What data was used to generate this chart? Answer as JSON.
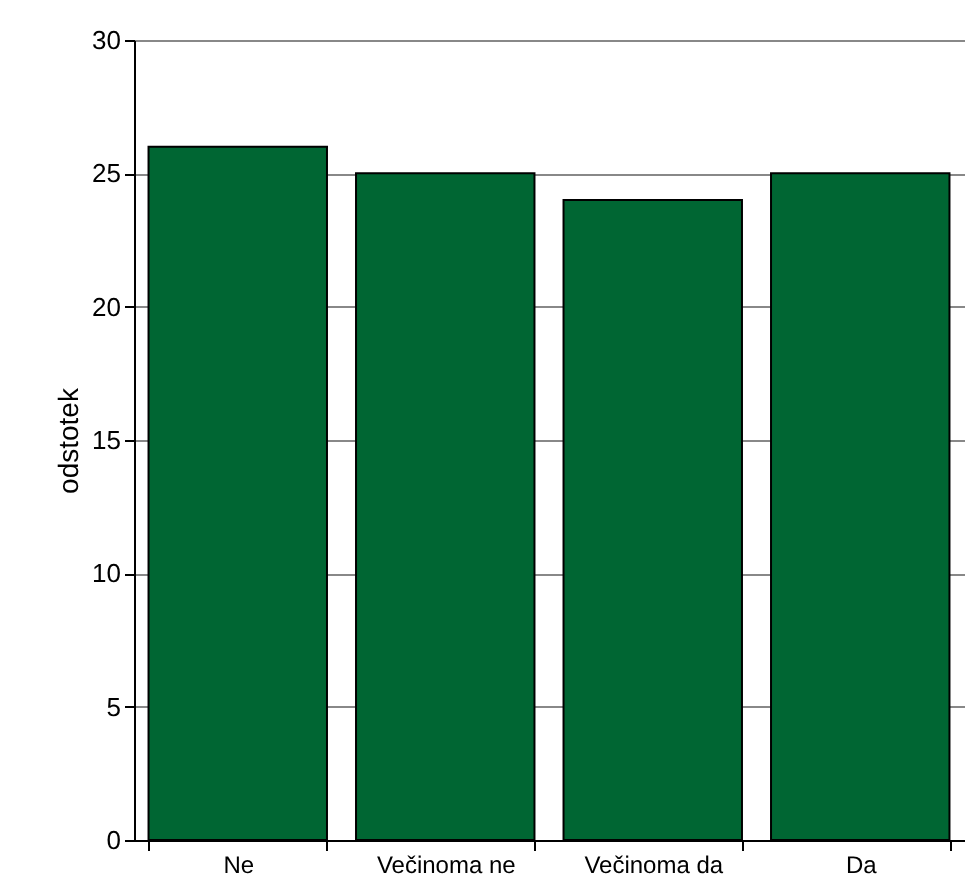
{
  "chart_data": {
    "type": "bar",
    "ylabel": "odstotek",
    "categories": [
      "Ne",
      "Večinoma ne",
      "Večinoma da",
      "Da"
    ],
    "values": [
      26,
      25,
      24,
      25
    ],
    "color": "#006633",
    "ylim": [
      0,
      30
    ],
    "yticks": [
      0,
      5,
      10,
      15,
      20,
      25,
      30
    ],
    "grid": "y"
  }
}
